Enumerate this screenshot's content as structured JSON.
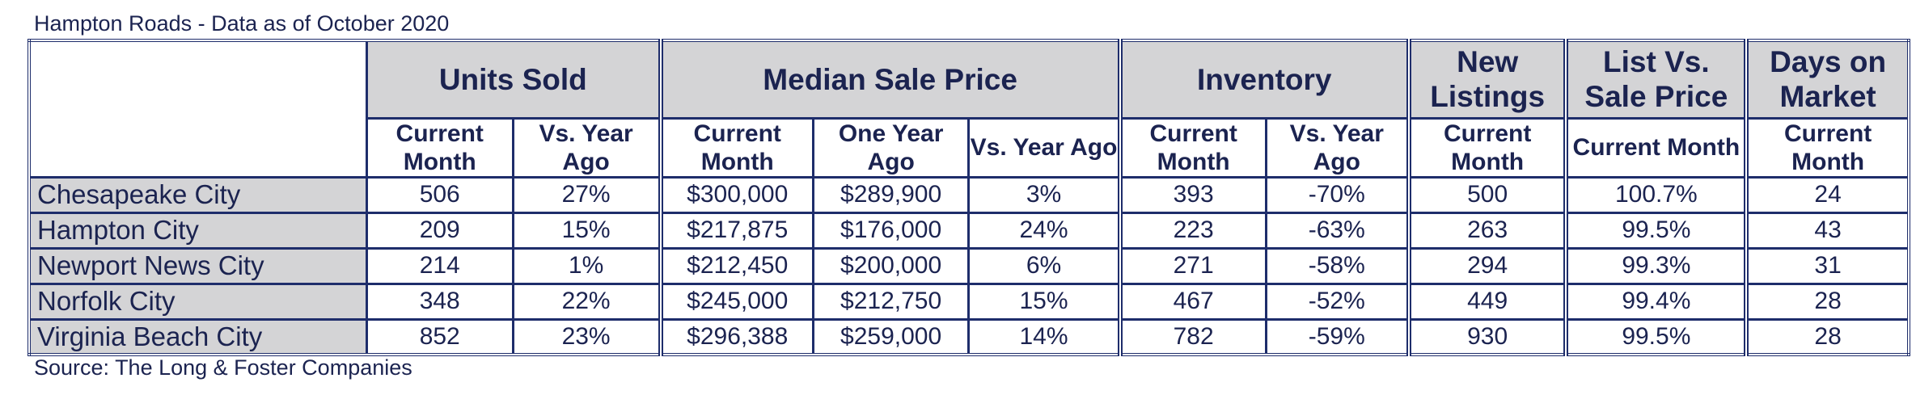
{
  "title": "Hampton Roads - Data as of October 2020",
  "source": "Source: The Long & Foster Companies",
  "headers": {
    "units_sold": "Units Sold",
    "median_sale_price": "Median Sale Price",
    "inventory": "Inventory",
    "new_listings": "New Listings",
    "list_vs_sale": "List Vs. Sale Price",
    "days_on_market": "Days on Market"
  },
  "subheaders": {
    "units_current": "Current Month",
    "units_vs": "Vs. Year Ago",
    "price_current": "Current Month",
    "price_one_year": "One Year Ago",
    "price_vs": "Vs. Year Ago",
    "inv_current": "Current Month",
    "inv_vs": "Vs. Year Ago",
    "listings_current": "Current Month",
    "list_sale_current": "Current Month",
    "dom_current": "Current Month"
  },
  "rows": [
    [
      "Chesapeake City",
      "506",
      "27%",
      "$300,000",
      "$289,900",
      "3%",
      "393",
      "-70%",
      "500",
      "100.7%",
      "24"
    ],
    [
      "Hampton City",
      "209",
      "15%",
      "$217,875",
      "$176,000",
      "24%",
      "223",
      "-63%",
      "263",
      "99.5%",
      "43"
    ],
    [
      "Newport News City",
      "214",
      "1%",
      "$212,450",
      "$200,000",
      "6%",
      "271",
      "-58%",
      "294",
      "99.3%",
      "31"
    ],
    [
      "Norfolk City",
      "348",
      "22%",
      "$245,000",
      "$212,750",
      "15%",
      "467",
      "-52%",
      "449",
      "99.4%",
      "28"
    ],
    [
      "Virginia Beach City",
      "852",
      "23%",
      "$296,388",
      "$259,000",
      "14%",
      "782",
      "-59%",
      "930",
      "99.5%",
      "28"
    ]
  ]
}
